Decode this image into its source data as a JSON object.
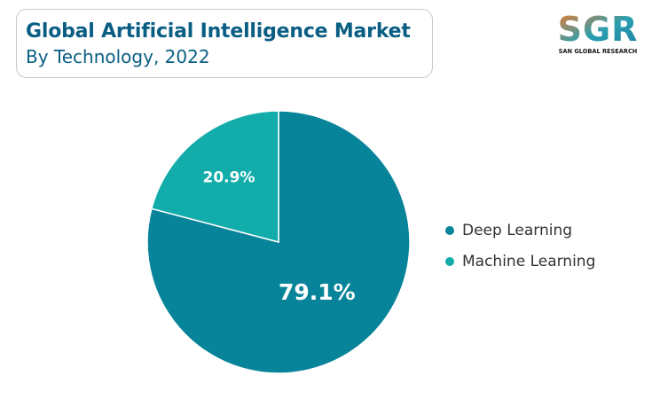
{
  "header": {
    "title": "Global Artificial Intelligence Market",
    "subtitle": "By Technology, 2022"
  },
  "logo": {
    "text": "SGR",
    "tagline": "SAN GLOBAL RESEARCH",
    "colors": {
      "orange": "#f47a2b",
      "teal": "#2a9fb0"
    }
  },
  "chart_data": {
    "type": "pie",
    "categories": [
      "Deep Learning",
      "Machine Learning"
    ],
    "values": [
      79.1,
      20.9
    ],
    "data_labels": [
      "79.1%",
      "20.9%"
    ],
    "colors": [
      "#07839a",
      "#12acab"
    ],
    "legend_position": "right",
    "start_angle": "top",
    "direction": "clockwise"
  }
}
